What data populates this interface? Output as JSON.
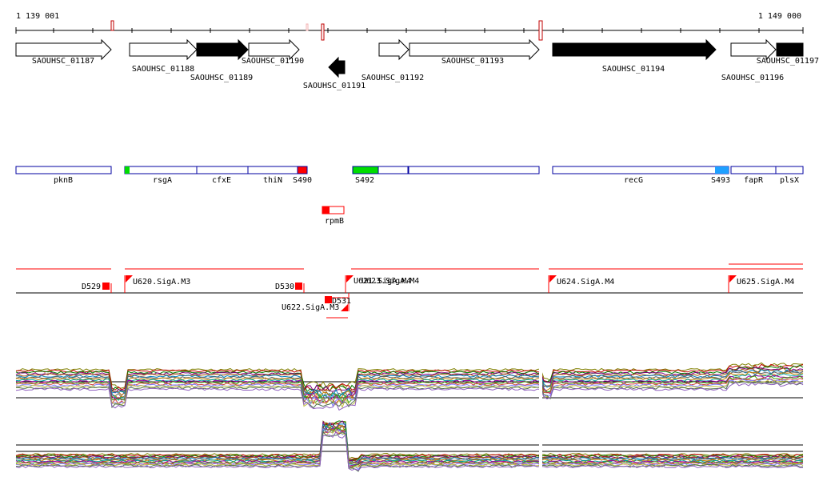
{
  "ruler": {
    "start_label": "1 139 001",
    "end_label": "1 149 000"
  },
  "annotated_genes": [
    {
      "label": "SAOUHSC_01187",
      "strand": "+",
      "filled": false
    },
    {
      "label": "SAOUHSC_01188",
      "strand": "+",
      "filled": false
    },
    {
      "label": "SAOUHSC_01189",
      "strand": "+",
      "filled": true
    },
    {
      "label": "SAOUHSC_01190",
      "strand": "+",
      "filled": false
    },
    {
      "label": "SAOUHSC_01191",
      "strand": "-",
      "filled": true
    },
    {
      "label": "SAOUHSC_01192",
      "strand": "+",
      "filled": false
    },
    {
      "label": "SAOUHSC_01193",
      "strand": "+",
      "filled": false
    },
    {
      "label": "SAOUHSC_01194",
      "strand": "+",
      "filled": true
    },
    {
      "label": "SAOUHSC_01196",
      "strand": "+",
      "filled": false
    },
    {
      "label": "SAOUHSC_01197",
      "strand": "+",
      "filled": true
    }
  ],
  "segments": [
    {
      "label": "pknB"
    },
    {
      "label": "rsgA"
    },
    {
      "label": "cfxE"
    },
    {
      "label": "thiN"
    },
    {
      "label": "S490"
    },
    {
      "label": "S492"
    },
    {
      "label": "recG"
    },
    {
      "label": "S493"
    },
    {
      "label": "fapR"
    },
    {
      "label": "plsX"
    },
    {
      "label": "rpmB"
    }
  ],
  "promoters": [
    {
      "label": "D529"
    },
    {
      "label": "U620.SigA.M3"
    },
    {
      "label": "D530"
    },
    {
      "label": "D531"
    },
    {
      "label": "U622.SigA.M3"
    },
    {
      "label": "U621.SigA.M4"
    },
    {
      "label": "U623.SigA.M4"
    },
    {
      "label": "U624.SigA.M4"
    },
    {
      "label": "U625.SigA.M4"
    }
  ],
  "colors": {
    "segment_border": "#0000a0",
    "promoter": "#ff0000",
    "green_mark": "#00dd00",
    "blue_mark": "#1ea0ff",
    "dark_arrow": "#000000"
  }
}
